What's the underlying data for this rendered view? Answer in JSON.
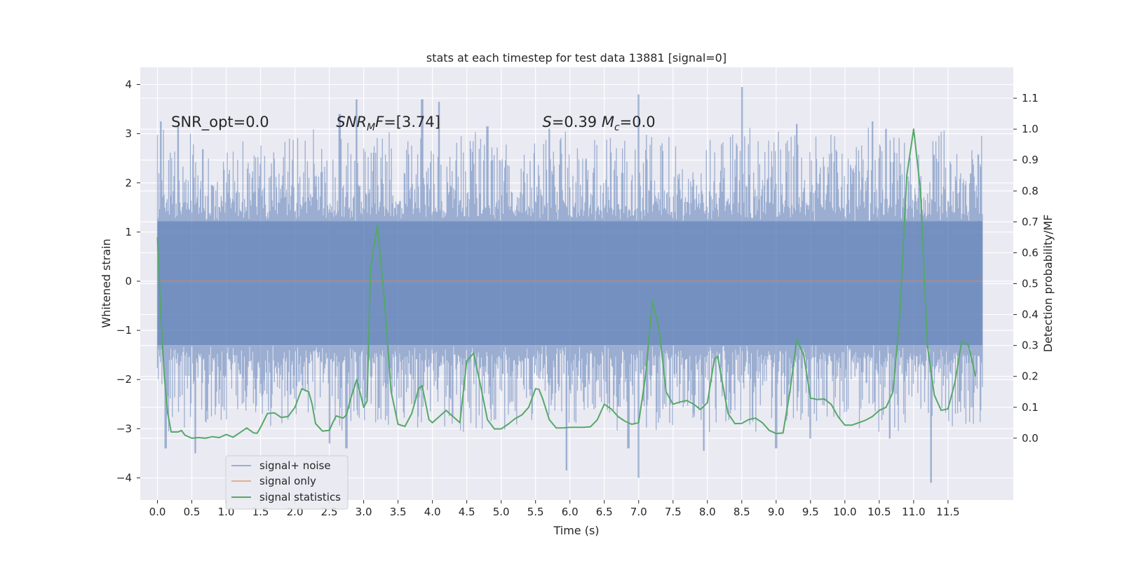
{
  "chart_data": {
    "type": "line",
    "title": "stats at each timestep for test data 13881 [signal=0]",
    "xlabel": "Time (s)",
    "ylabel": "Whitened strain",
    "y2label": "Detection probability/MF",
    "xlim": [
      -0.25,
      12.45
    ],
    "ylim": [
      -4.45,
      4.35
    ],
    "y2lim": [
      -0.2,
      1.2
    ],
    "xticks": [
      "0.0",
      "0.5",
      "1.0",
      "1.5",
      "2.0",
      "2.5",
      "3.0",
      "3.5",
      "4.0",
      "4.5",
      "5.0",
      "5.5",
      "6.0",
      "6.5",
      "7.0",
      "7.5",
      "8.0",
      "8.5",
      "9.0",
      "9.5",
      "10.0",
      "10.5",
      "11.0",
      "11.5"
    ],
    "yticks": [
      "4",
      "3",
      "2",
      "1",
      "0",
      "−1",
      "−2",
      "−3",
      "−4"
    ],
    "y2ticks": [
      "1.1",
      "1.0",
      "0.9",
      "0.8",
      "0.7",
      "0.6",
      "0.5",
      "0.4",
      "0.3",
      "0.2",
      "0.1",
      "0.0"
    ],
    "grid": true,
    "legend_position": "lower-left",
    "annotations": [
      {
        "parts": [
          {
            "t": "SNR_opt=0.0",
            "i": false
          }
        ]
      },
      {
        "parts": [
          {
            "t": "SNR",
            "i": true
          },
          {
            "t": "M",
            "i": true,
            "sub": true
          },
          {
            "t": "F",
            "i": true
          },
          {
            "t": "=[3.74]",
            "i": false
          }
        ]
      },
      {
        "parts": [
          {
            "t": "S",
            "i": true
          },
          {
            "t": "=0.39   ",
            "i": false
          },
          {
            "t": "M",
            "i": true
          },
          {
            "t": "c",
            "i": true,
            "sub": true
          },
          {
            "t": "=0.0",
            "i": false
          }
        ]
      }
    ],
    "series": [
      {
        "name": "signal+ noise",
        "color": "#4c72b0",
        "style": "noise-band",
        "duration": 12.0,
        "core_max": 1.22,
        "core_min": -1.3,
        "spike_peaks": [
          [
            0.05,
            3.25
          ],
          [
            0.3,
            3.15
          ],
          [
            2.65,
            3.4
          ],
          [
            2.9,
            3.7
          ],
          [
            3.85,
            3.7
          ],
          [
            4.1,
            3.65
          ],
          [
            4.8,
            3.15
          ],
          [
            5.7,
            3.1
          ],
          [
            7.0,
            3.8
          ],
          [
            8.5,
            3.95
          ],
          [
            9.3,
            3.2
          ],
          [
            10.4,
            3.25
          ],
          [
            10.6,
            3.1
          ]
        ],
        "spike_troughs": [
          [
            0.12,
            -3.4
          ],
          [
            0.55,
            -3.5
          ],
          [
            2.5,
            -3.3
          ],
          [
            2.75,
            -3.4
          ],
          [
            5.95,
            -3.85
          ],
          [
            6.85,
            -3.4
          ],
          [
            7.0,
            -4.0
          ],
          [
            7.95,
            -3.45
          ],
          [
            9.0,
            -3.4
          ],
          [
            9.5,
            -3.2
          ],
          [
            10.65,
            -3.2
          ],
          [
            11.25,
            -4.1
          ]
        ]
      },
      {
        "name": "signal only",
        "color": "#dd8452",
        "values": [
          [
            0.0,
            0.0
          ],
          [
            12.0,
            0.0
          ]
        ]
      },
      {
        "name": "signal statistics",
        "color": "#55a868",
        "axis": "right",
        "values": [
          [
            0.0,
            0.65
          ],
          [
            0.05,
            0.4
          ],
          [
            0.1,
            0.2
          ],
          [
            0.15,
            0.08
          ],
          [
            0.2,
            0.02
          ],
          [
            0.3,
            0.02
          ],
          [
            0.35,
            0.025
          ],
          [
            0.4,
            0.01
          ],
          [
            0.5,
            0.0
          ],
          [
            0.6,
            0.002
          ],
          [
            0.7,
            0.0
          ],
          [
            0.8,
            0.005
          ],
          [
            0.9,
            0.002
          ],
          [
            1.0,
            0.012
          ],
          [
            1.1,
            0.003
          ],
          [
            1.2,
            0.018
          ],
          [
            1.3,
            0.033
          ],
          [
            1.4,
            0.017
          ],
          [
            1.45,
            0.016
          ],
          [
            1.5,
            0.035
          ],
          [
            1.6,
            0.08
          ],
          [
            1.7,
            0.082
          ],
          [
            1.8,
            0.067
          ],
          [
            1.9,
            0.07
          ],
          [
            2.0,
            0.1
          ],
          [
            2.1,
            0.16
          ],
          [
            2.2,
            0.15
          ],
          [
            2.25,
            0.11
          ],
          [
            2.3,
            0.047
          ],
          [
            2.4,
            0.023
          ],
          [
            2.5,
            0.025
          ],
          [
            2.55,
            0.05
          ],
          [
            2.6,
            0.072
          ],
          [
            2.7,
            0.065
          ],
          [
            2.75,
            0.075
          ],
          [
            2.8,
            0.12
          ],
          [
            2.9,
            0.19
          ],
          [
            3.0,
            0.1
          ],
          [
            3.05,
            0.12
          ],
          [
            3.1,
            0.55
          ],
          [
            3.2,
            0.69
          ],
          [
            3.3,
            0.45
          ],
          [
            3.4,
            0.15
          ],
          [
            3.5,
            0.045
          ],
          [
            3.6,
            0.038
          ],
          [
            3.7,
            0.08
          ],
          [
            3.8,
            0.16
          ],
          [
            3.85,
            0.17
          ],
          [
            3.95,
            0.06
          ],
          [
            4.0,
            0.05
          ],
          [
            4.1,
            0.07
          ],
          [
            4.2,
            0.09
          ],
          [
            4.3,
            0.07
          ],
          [
            4.4,
            0.05
          ],
          [
            4.5,
            0.25
          ],
          [
            4.6,
            0.275
          ],
          [
            4.7,
            0.17
          ],
          [
            4.8,
            0.06
          ],
          [
            4.9,
            0.03
          ],
          [
            5.0,
            0.03
          ],
          [
            5.1,
            0.045
          ],
          [
            5.2,
            0.063
          ],
          [
            5.3,
            0.075
          ],
          [
            5.4,
            0.1
          ],
          [
            5.5,
            0.16
          ],
          [
            5.55,
            0.158
          ],
          [
            5.6,
            0.13
          ],
          [
            5.7,
            0.06
          ],
          [
            5.8,
            0.033
          ],
          [
            5.9,
            0.033
          ],
          [
            6.0,
            0.035
          ],
          [
            6.1,
            0.035
          ],
          [
            6.2,
            0.035
          ],
          [
            6.3,
            0.037
          ],
          [
            6.4,
            0.06
          ],
          [
            6.5,
            0.11
          ],
          [
            6.6,
            0.095
          ],
          [
            6.7,
            0.07
          ],
          [
            6.8,
            0.055
          ],
          [
            6.9,
            0.045
          ],
          [
            7.0,
            0.05
          ],
          [
            7.1,
            0.2
          ],
          [
            7.2,
            0.445
          ],
          [
            7.3,
            0.35
          ],
          [
            7.4,
            0.15
          ],
          [
            7.5,
            0.11
          ],
          [
            7.6,
            0.117
          ],
          [
            7.7,
            0.122
          ],
          [
            7.8,
            0.11
          ],
          [
            7.9,
            0.093
          ],
          [
            8.0,
            0.115
          ],
          [
            8.1,
            0.255
          ],
          [
            8.15,
            0.265
          ],
          [
            8.2,
            0.2
          ],
          [
            8.3,
            0.08
          ],
          [
            8.4,
            0.047
          ],
          [
            8.5,
            0.048
          ],
          [
            8.6,
            0.06
          ],
          [
            8.7,
            0.065
          ],
          [
            8.8,
            0.05
          ],
          [
            8.9,
            0.025
          ],
          [
            9.0,
            0.015
          ],
          [
            9.1,
            0.017
          ],
          [
            9.2,
            0.15
          ],
          [
            9.3,
            0.32
          ],
          [
            9.4,
            0.27
          ],
          [
            9.5,
            0.13
          ],
          [
            9.6,
            0.125
          ],
          [
            9.7,
            0.127
          ],
          [
            9.8,
            0.11
          ],
          [
            9.9,
            0.07
          ],
          [
            10.0,
            0.042
          ],
          [
            10.1,
            0.042
          ],
          [
            10.2,
            0.05
          ],
          [
            10.3,
            0.058
          ],
          [
            10.4,
            0.07
          ],
          [
            10.5,
            0.09
          ],
          [
            10.6,
            0.1
          ],
          [
            10.7,
            0.15
          ],
          [
            10.8,
            0.4
          ],
          [
            10.9,
            0.85
          ],
          [
            11.0,
            1.0
          ],
          [
            11.1,
            0.8
          ],
          [
            11.2,
            0.3
          ],
          [
            11.3,
            0.14
          ],
          [
            11.4,
            0.09
          ],
          [
            11.5,
            0.095
          ],
          [
            11.6,
            0.18
          ],
          [
            11.7,
            0.315
          ],
          [
            11.8,
            0.3
          ],
          [
            11.9,
            0.2
          ]
        ]
      }
    ]
  }
}
